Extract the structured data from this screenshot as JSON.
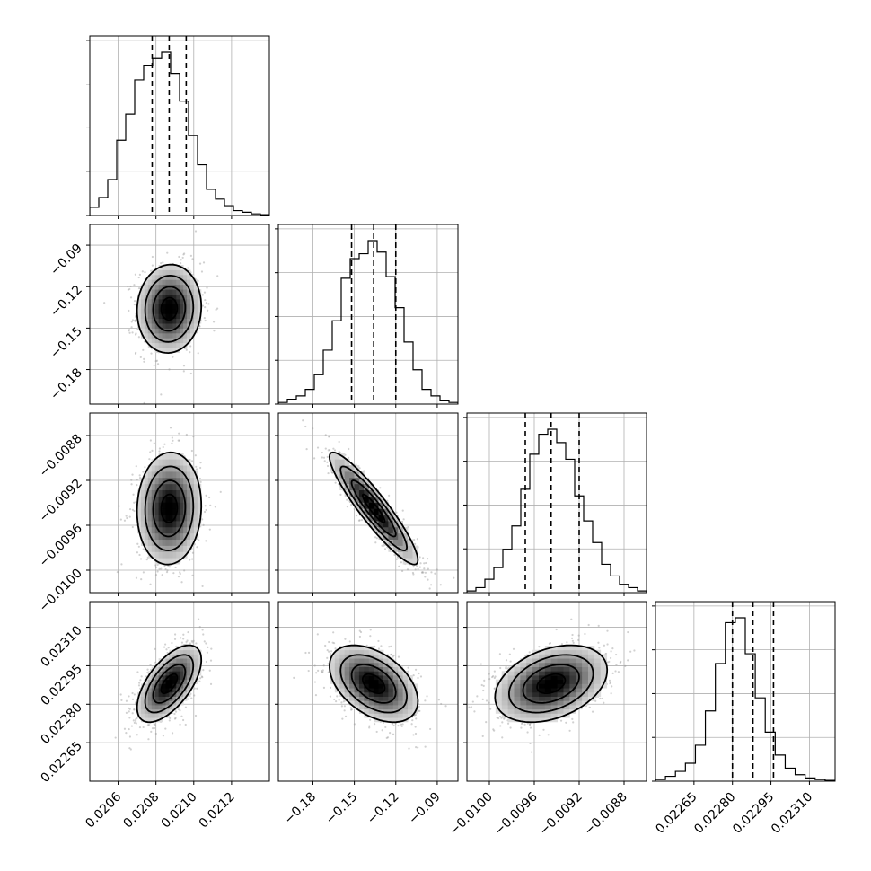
{
  "chart_data": {
    "type": "corner",
    "params": [
      {
        "range": [
          0.02045,
          0.0214
        ],
        "ticks": [
          "0.0206",
          "0.0208",
          "0.0210",
          "0.0212"
        ],
        "tick_values": [
          0.0206,
          0.0208,
          0.021,
          0.0212
        ],
        "quantiles": [
          0.02078,
          0.02087,
          0.02096
        ],
        "mean": 0.02087,
        "sd": 8.5e-05,
        "hist_counts": [
          0.05,
          0.11,
          0.22,
          0.46,
          0.62,
          0.83,
          0.92,
          0.96,
          1.0,
          0.87,
          0.7,
          0.49,
          0.31,
          0.16,
          0.1,
          0.06,
          0.03,
          0.02,
          0.01,
          0.005
        ]
      },
      {
        "range": [
          -0.205,
          -0.075
        ],
        "ticks": [
          "−0.18",
          "−0.15",
          "−0.12",
          "−0.09"
        ],
        "tick_values": [
          -0.18,
          -0.15,
          -0.12,
          -0.09
        ],
        "quantiles": [
          -0.152,
          -0.136,
          -0.12
        ],
        "mean": -0.136,
        "sd": 0.016,
        "hist_counts": [
          0.01,
          0.03,
          0.05,
          0.09,
          0.18,
          0.33,
          0.51,
          0.77,
          0.89,
          0.92,
          1.0,
          0.93,
          0.78,
          0.59,
          0.38,
          0.21,
          0.09,
          0.05,
          0.02,
          0.01
        ]
      },
      {
        "range": [
          -0.0102,
          -0.0086
        ],
        "ticks": [
          "−0.0100",
          "−0.0096",
          "−0.0092",
          "−0.0088"
        ],
        "tick_values": [
          -0.01,
          -0.0096,
          -0.0092,
          -0.0088
        ],
        "quantiles": [
          -0.00968,
          -0.00945,
          -0.0092
        ],
        "mean": -0.00945,
        "sd": 0.00025,
        "hist_counts": [
          0.01,
          0.03,
          0.08,
          0.15,
          0.26,
          0.4,
          0.62,
          0.83,
          0.95,
          0.98,
          0.9,
          0.8,
          0.58,
          0.43,
          0.3,
          0.17,
          0.1,
          0.05,
          0.03,
          0.01
        ]
      },
      {
        "range": [
          0.0225,
          0.0232
        ],
        "ticks": [
          "0.02265",
          "0.02280",
          "0.02295",
          "0.02310"
        ],
        "tick_values": [
          0.02265,
          0.0228,
          0.02295,
          0.0231
        ],
        "quantiles": [
          0.0228,
          0.02288,
          0.02296
        ],
        "mean": 0.02288,
        "sd": 7.5e-05,
        "hist_counts": [
          0.01,
          0.03,
          0.06,
          0.11,
          0.22,
          0.43,
          0.72,
          0.97,
          1.0,
          0.78,
          0.51,
          0.3,
          0.16,
          0.08,
          0.04,
          0.02,
          0.01,
          0.005
        ]
      }
    ],
    "correlations": {
      "1-0": 0.05,
      "2-0": 0.05,
      "2-1": -0.92,
      "3-0": 0.62,
      "3-1": -0.45,
      "3-2": 0.35
    },
    "quantile_levels": [
      0.16,
      0.5,
      0.84
    ],
    "grid": true
  }
}
